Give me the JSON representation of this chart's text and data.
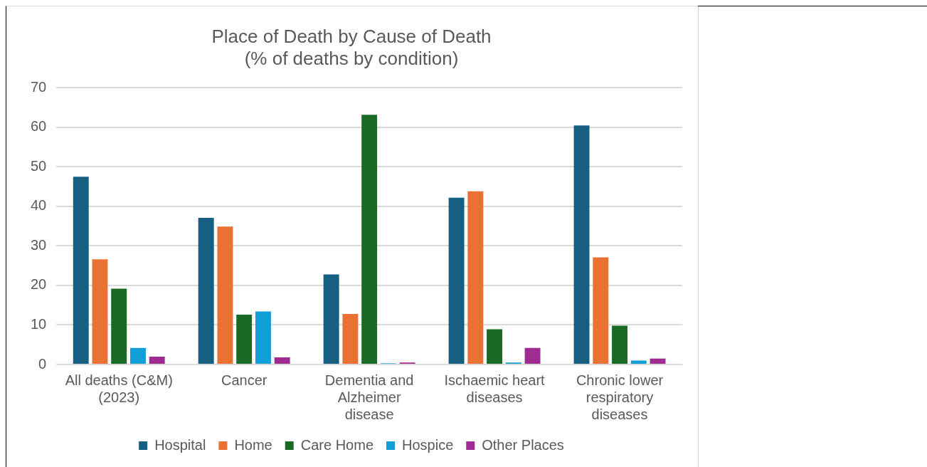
{
  "chart_data": {
    "type": "bar",
    "title": "Place of Death by Cause of Death",
    "subtitle": "(% of deaths by condition)",
    "categories": [
      "All deaths (C&M) (2023)",
      "Cancer",
      "Dementia and Alzheimer disease",
      "Ischaemic heart diseases",
      "Chronic lower respiratory diseases"
    ],
    "series": [
      {
        "name": "Hospital",
        "color": "#156082",
        "values": [
          47.5,
          37.1,
          22.8,
          42.2,
          60.5
        ]
      },
      {
        "name": "Home",
        "color": "#e97132",
        "values": [
          26.6,
          34.9,
          12.8,
          43.8,
          27.1
        ]
      },
      {
        "name": "Care Home",
        "color": "#196b24",
        "values": [
          19.2,
          12.6,
          63.2,
          8.9,
          9.8
        ]
      },
      {
        "name": "Hospice",
        "color": "#0f9ed5",
        "values": [
          4.2,
          13.4,
          0.3,
          0.5,
          1.0
        ]
      },
      {
        "name": "Other Places",
        "color": "#a02b93",
        "values": [
          2.0,
          1.8,
          0.5,
          4.2,
          1.5
        ]
      }
    ],
    "ylim": [
      0,
      70
    ],
    "yticks": [
      0,
      10,
      20,
      30,
      40,
      50,
      60,
      70
    ],
    "grid": "y",
    "legend": "bottom"
  }
}
